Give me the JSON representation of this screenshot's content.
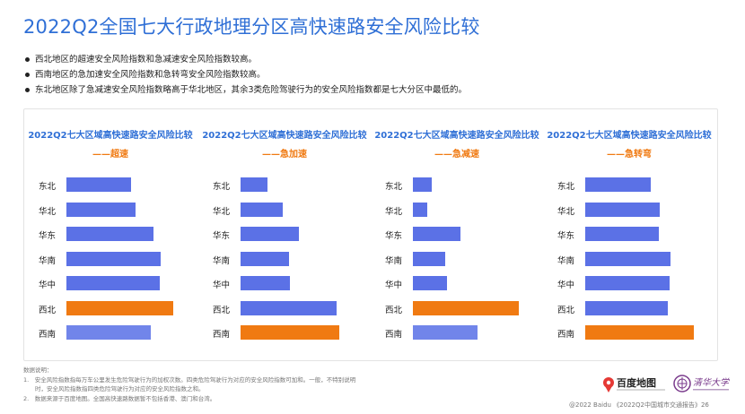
{
  "title": "2022Q2全国七大行政地理分区高快速路安全风险比较",
  "bullets": [
    "西北地区的超速安全风险指数和急减速安全风险指数较高。",
    "西南地区的急加速安全风险指数和急转弯安全风险指数较高。",
    "东北地区除了急减速安全风险指数略高于华北地区，其余3类危险驾驶行为的安全风险指数都是七大分区中最低的。"
  ],
  "colors": {
    "normal": "#5b71e6",
    "light": "#7185ea",
    "highlight": "#f07a12",
    "title": "#2f6fd6"
  },
  "chart_data": [
    {
      "type": "bar",
      "orientation": "horizontal",
      "title": "2022Q2七大区域高快速路安全风险比较",
      "subtitle": "——超速",
      "categories": [
        "东北",
        "华北",
        "华东",
        "华南",
        "华中",
        "西北",
        "西南"
      ],
      "values": [
        0.64,
        0.68,
        0.86,
        0.93,
        0.92,
        1.06,
        0.83
      ],
      "highlight_index": 5,
      "xlim": [
        0,
        1.1
      ]
    },
    {
      "type": "bar",
      "orientation": "horizontal",
      "title": "2022Q2七大区域高快速路安全风险比较",
      "subtitle": "——急加速",
      "categories": [
        "东北",
        "华北",
        "华东",
        "华南",
        "华中",
        "西北",
        "西南"
      ],
      "values": [
        0.27,
        0.42,
        0.58,
        0.48,
        0.49,
        0.95,
        0.98
      ],
      "highlight_index": 6,
      "xlim": [
        0,
        1.1
      ]
    },
    {
      "type": "bar",
      "orientation": "horizontal",
      "title": "2022Q2七大区域高快速路安全风险比较",
      "subtitle": "——急减速",
      "categories": [
        "东北",
        "华北",
        "华东",
        "华南",
        "华中",
        "西北",
        "西南"
      ],
      "values": [
        0.19,
        0.14,
        0.47,
        0.32,
        0.34,
        1.05,
        0.64
      ],
      "highlight_index": 5,
      "xlim": [
        0,
        1.1
      ]
    },
    {
      "type": "bar",
      "orientation": "horizontal",
      "title": "2022Q2七大区域高快速路安全风险比较",
      "subtitle": "——急转弯",
      "categories": [
        "东北",
        "华北",
        "华东",
        "华南",
        "华中",
        "西北",
        "西南"
      ],
      "values": [
        0.65,
        0.74,
        0.73,
        0.84,
        0.83,
        0.82,
        1.07
      ],
      "highlight_index": 6,
      "xlim": [
        0,
        1.1
      ]
    }
  ],
  "notes": [
    "数据说明：",
    "1.　安全风险指数指每万车公里发生危险驾驶行为的加权次数。四类危险驾驶行为对应的安全风险指数可加和。一般，不特别说明",
    "　　时，安全风险指数指四类危险驾驶行为对应的安全风险指数之和。",
    "2.　数据来源于百度地图。全国高快速路数据暂不包括香港、澳门和台湾。"
  ],
  "logos": {
    "baidu_name": "百度地图",
    "tsinghua_name": "清华大学"
  },
  "copyright": "@2022 Baidu 《2022Q2中国城市交通报告》26"
}
